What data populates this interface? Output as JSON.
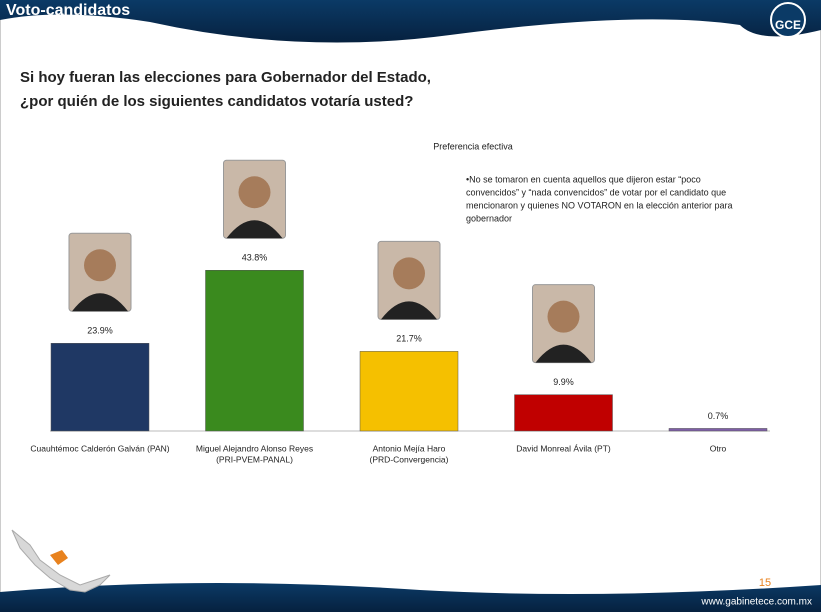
{
  "header": {
    "title": "Voto-candidatos",
    "logo": "GCE"
  },
  "question": [
    "Si hoy fueran las elecciones para Gobernador del Estado,",
    "¿por quién de los siguientes candidatos votaría usted?"
  ],
  "chart_data": {
    "type": "bar",
    "title": "Preferencia efectiva",
    "note": [
      "•No se tomaron en cuenta aquellos que dijeron estar “poco",
      "convencidos” y “nada convencidos” de votar por el candidato que",
      "mencionaron y quienes  NO VOTARON en la elección anterior para",
      "gobernador"
    ],
    "categories": [
      [
        "Cuauhtémoc Calderón Galván (PAN)"
      ],
      [
        "Miguel Alejandro Alonso Reyes",
        "(PRI-PVEM-PANAL)"
      ],
      [
        "Antonio Mejía Haro",
        "(PRD-Convergencia)"
      ],
      [
        "David Monreal Ávila (PT)"
      ],
      [
        "Otro"
      ]
    ],
    "values": [
      23.9,
      43.8,
      21.7,
      9.9,
      0.7
    ],
    "value_labels": [
      "23.9%",
      "43.8%",
      "21.7%",
      "9.9%",
      "0.7%"
    ],
    "colors": [
      "#1f3864",
      "#3a8a1e",
      "#f5c000",
      "#c00000",
      "#7f5fa8"
    ]
  },
  "footer": {
    "page": "15",
    "url": "www.gabinetece.com.mx"
  }
}
